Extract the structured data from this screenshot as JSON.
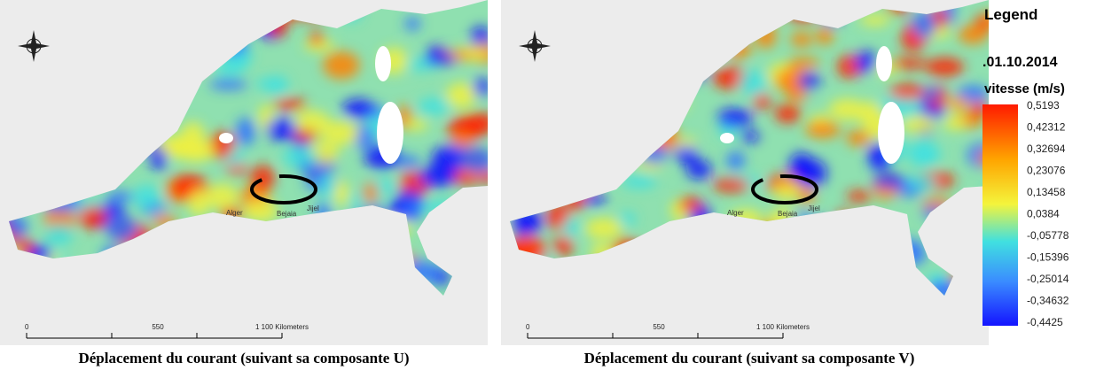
{
  "maps": [
    {
      "caption": "Déplacement du courant (suivant sa composante U)",
      "cities": [
        "Alger",
        "Bejaia",
        "Jijel"
      ],
      "scale": [
        "0",
        "550",
        "1 100 Kilometers"
      ]
    },
    {
      "caption": "Déplacement du courant (suivant sa composante V)",
      "cities": [
        "Alger",
        "Bejaia",
        "Jijel"
      ],
      "scale": [
        "0",
        "550",
        "1 100 Kilometers"
      ]
    }
  ],
  "legend": {
    "title": "Legend",
    "date": ".01.10.2014",
    "variable": "vitesse (m/s)",
    "labels": [
      "0,5193",
      "0,42312",
      "0,32694",
      "0,23076",
      "0,13458",
      "0,0384",
      "-0,05778",
      "-0,15396",
      "-0,25014",
      "-0,34632",
      "-0,4425"
    ]
  }
}
